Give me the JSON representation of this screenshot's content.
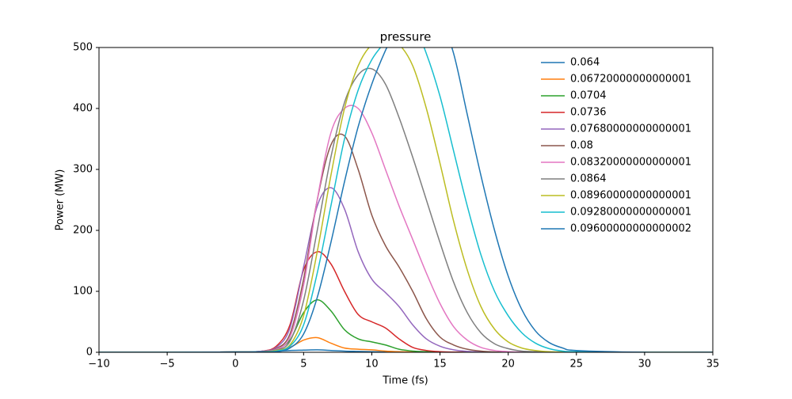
{
  "chart_data": {
    "type": "line",
    "title": "pressure",
    "x_label": "Time (fs)",
    "y_label": "Power (MW)",
    "x": [
      -10,
      -5,
      0,
      1,
      2,
      3,
      4,
      5,
      6,
      7,
      8,
      9,
      10,
      11,
      12,
      13,
      14,
      15,
      16,
      17,
      18,
      19,
      20,
      21,
      22,
      23,
      24,
      25,
      30,
      35
    ],
    "xlim": [
      -10,
      35
    ],
    "xticks": [
      {
        "value": -10,
        "label": "−10"
      },
      {
        "value": -5,
        "label": "−5"
      },
      0,
      5,
      10,
      15,
      20,
      25,
      30,
      35
    ],
    "ylim": [
      0,
      500
    ],
    "yticks": [
      0,
      100,
      200,
      300,
      400,
      500
    ],
    "legend": "upper right",
    "series": [
      {
        "name": "0.064",
        "color": "#1f77b4",
        "values": [
          0,
          0,
          0.5,
          0.5,
          1,
          2,
          3,
          3.5,
          4,
          3,
          2,
          1.5,
          1,
          0.5,
          0.2,
          0,
          0,
          0,
          0,
          0,
          0,
          0,
          0,
          0,
          0,
          0,
          0,
          0,
          0,
          0
        ]
      },
      {
        "name": "0.06720000000000001",
        "color": "#ff7f0e",
        "values": [
          0,
          0,
          0.5,
          0.5,
          1,
          3,
          8,
          20,
          24,
          15,
          7,
          5,
          4,
          2,
          1,
          0.5,
          0.2,
          0,
          0,
          0,
          0,
          0,
          0,
          0,
          0,
          0,
          0,
          0,
          0,
          0
        ]
      },
      {
        "name": "0.0704",
        "color": "#2ca02c",
        "values": [
          0,
          0,
          0.5,
          0.5,
          1.5,
          5,
          20,
          65,
          86,
          68,
          37,
          22,
          17,
          12,
          5,
          2,
          1,
          0.3,
          0,
          0,
          0,
          0,
          0,
          0,
          0,
          0,
          0,
          0,
          0,
          0
        ]
      },
      {
        "name": "0.0736",
        "color": "#d62728",
        "values": [
          0,
          0,
          0.5,
          0.5,
          2,
          10,
          45,
          135,
          165,
          145,
          100,
          62,
          50,
          40,
          22,
          8,
          3,
          1,
          0.3,
          0,
          0,
          0,
          0,
          0,
          0,
          0,
          0,
          0,
          0,
          0
        ]
      },
      {
        "name": "0.07680000000000001",
        "color": "#9467bd",
        "values": [
          0,
          0,
          0.5,
          0.5,
          2,
          8,
          40,
          140,
          240,
          270,
          235,
          165,
          120,
          98,
          75,
          45,
          22,
          10,
          4,
          1.5,
          0.5,
          0,
          0,
          0,
          0,
          0,
          0,
          0,
          0,
          0
        ]
      },
      {
        "name": "0.08",
        "color": "#8c564b",
        "values": [
          0,
          0,
          0.5,
          0.5,
          2,
          6,
          30,
          120,
          250,
          340,
          355,
          300,
          225,
          175,
          140,
          100,
          55,
          25,
          12,
          5,
          2,
          0.5,
          0,
          0,
          0,
          0,
          0,
          0,
          0,
          0
        ]
      },
      {
        "name": "0.08320000000000001",
        "color": "#e377c2",
        "values": [
          0,
          0,
          0.5,
          0.5,
          2,
          5,
          25,
          110,
          250,
          360,
          400,
          400,
          360,
          300,
          240,
          185,
          130,
          80,
          42,
          20,
          8,
          3,
          1,
          0.3,
          0,
          0,
          0,
          0,
          0,
          0
        ]
      },
      {
        "name": "0.0864",
        "color": "#7f7f7f",
        "values": [
          0,
          0,
          0.5,
          0.5,
          1.5,
          4,
          18,
          85,
          200,
          320,
          410,
          455,
          465,
          440,
          385,
          320,
          250,
          180,
          115,
          65,
          32,
          14,
          6,
          2,
          1,
          0.3,
          0,
          0,
          0,
          0
        ]
      },
      {
        "name": "0.08960000000000001",
        "color": "#bcbd22",
        "values": [
          0,
          0,
          0.5,
          0.5,
          1,
          3,
          12,
          60,
          165,
          290,
          400,
          470,
          505,
          515,
          505,
          470,
          400,
          310,
          215,
          135,
          75,
          38,
          17,
          7,
          3,
          1,
          0.3,
          0,
          0,
          0
        ]
      },
      {
        "name": "0.09280000000000001",
        "color": "#17becf",
        "values": [
          0,
          0,
          0.5,
          0.5,
          1,
          2,
          10,
          45,
          130,
          240,
          350,
          430,
          480,
          510,
          540,
          540,
          490,
          420,
          330,
          240,
          160,
          100,
          60,
          32,
          15,
          6,
          2,
          1,
          0,
          0
        ]
      },
      {
        "name": "0.09600000000000002",
        "color": "#1f77b4",
        "values": [
          0,
          0,
          0.5,
          0.5,
          1,
          1,
          7,
          30,
          90,
          180,
          280,
          370,
          440,
          495,
          540,
          580,
          580,
          550,
          490,
          390,
          290,
          200,
          125,
          70,
          35,
          16,
          7,
          3,
          0,
          0
        ]
      }
    ]
  }
}
